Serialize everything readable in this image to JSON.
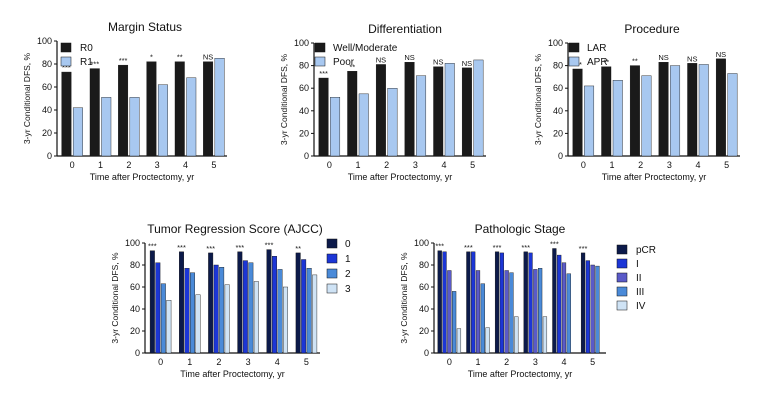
{
  "figure": {
    "colors": {
      "black": "#1a1a1a",
      "light_blue": "#a8c8f0",
      "navy": "#0c1a4a",
      "blue": "#1c36d6",
      "purple": "#5a5ac8",
      "mid_blue": "#4a8ad8",
      "pale_blue": "#cfe3f5"
    }
  },
  "chart_data": [
    {
      "type": "bar",
      "title": "Margin Status",
      "xlabel": "Time after Proctectomy, yr",
      "ylabel": "3-yr Conditional DFS, %",
      "ylim": [
        0,
        100
      ],
      "yticks": [
        "0",
        "20",
        "40",
        "60",
        "80",
        "100"
      ],
      "categories": [
        "0",
        "1",
        "2",
        "3",
        "4",
        "5"
      ],
      "legend_position": "top-right",
      "series": [
        {
          "name": "R0",
          "color": "#1a1a1a",
          "values": [
            73,
            76,
            79,
            82,
            82,
            82
          ]
        },
        {
          "name": "R1",
          "color": "#a8c8f0",
          "values": [
            42,
            51,
            51,
            62,
            68,
            85
          ]
        }
      ],
      "annotations": [
        "***",
        "***",
        "***",
        "*",
        "**",
        "NS"
      ]
    },
    {
      "type": "bar",
      "title": "Differentiation",
      "xlabel": "Time after Proctectomy, yr",
      "ylabel": "3-yr Conditional DFS, %",
      "ylim": [
        0,
        100
      ],
      "yticks": [
        "0",
        "20",
        "40",
        "60",
        "80",
        "100"
      ],
      "categories": [
        "0",
        "1",
        "2",
        "3",
        "4",
        "5"
      ],
      "legend_position": "top-right",
      "series": [
        {
          "name": "Well/Moderate",
          "color": "#1a1a1a",
          "values": [
            69,
            75,
            81,
            83,
            79,
            78
          ]
        },
        {
          "name": "Poor",
          "color": "#a8c8f0",
          "values": [
            52,
            55,
            60,
            71,
            82,
            85
          ]
        }
      ],
      "annotations": [
        "***",
        "**",
        "NS",
        "NS",
        "NS",
        "NS"
      ]
    },
    {
      "type": "bar",
      "title": "Procedure",
      "xlabel": "Time after Proctectomy, yr",
      "ylabel": "3-yr Conditional DFS, %",
      "ylim": [
        0,
        100
      ],
      "yticks": [
        "0",
        "20",
        "40",
        "60",
        "80",
        "100"
      ],
      "categories": [
        "0",
        "1",
        "2",
        "3",
        "4",
        "5"
      ],
      "legend_position": "top-right",
      "series": [
        {
          "name": "LAR",
          "color": "#1a1a1a",
          "values": [
            77,
            79,
            80,
            83,
            82,
            86
          ]
        },
        {
          "name": "APR",
          "color": "#a8c8f0",
          "values": [
            62,
            67,
            71,
            80,
            81,
            73
          ]
        }
      ],
      "annotations": [
        "***",
        "**",
        "**",
        "NS",
        "NS",
        "NS"
      ]
    },
    {
      "type": "bar",
      "title": "Tumor Regression Score  (AJCC)",
      "xlabel": "Time after Proctectomy, yr",
      "ylabel": "3-yr Conditional DFS, %",
      "ylim": [
        0,
        100
      ],
      "yticks": [
        "0",
        "20",
        "40",
        "60",
        "80",
        "100"
      ],
      "categories": [
        "0",
        "1",
        "2",
        "3",
        "4",
        "5"
      ],
      "legend_position": "right",
      "series": [
        {
          "name": "0",
          "color": "#0c1a4a",
          "values": [
            93,
            92,
            91,
            92,
            94,
            91
          ]
        },
        {
          "name": "1",
          "color": "#1c36d6",
          "values": [
            82,
            77,
            80,
            84,
            88,
            85
          ]
        },
        {
          "name": "2",
          "color": "#4a8ad8",
          "values": [
            63,
            73,
            78,
            82,
            76,
            77
          ]
        },
        {
          "name": "3",
          "color": "#cfe3f5",
          "values": [
            48,
            53,
            62,
            65,
            60,
            71
          ]
        }
      ],
      "annotations": [
        "***",
        "***",
        "***",
        "***",
        "***",
        "**"
      ]
    },
    {
      "type": "bar",
      "title": "Pathologic Stage",
      "xlabel": "Time after Proctectomy, yr",
      "ylabel": "3-yr Conditional DFS, %",
      "ylim": [
        0,
        100
      ],
      "yticks": [
        "0",
        "20",
        "40",
        "60",
        "80",
        "100"
      ],
      "categories": [
        "0",
        "1",
        "2",
        "3",
        "4",
        "5"
      ],
      "legend_position": "right",
      "series": [
        {
          "name": "pCR",
          "color": "#0c1a4a",
          "values": [
            93,
            92,
            92,
            92,
            95,
            91
          ]
        },
        {
          "name": "I",
          "color": "#1c36d6",
          "values": [
            92,
            92,
            91,
            91,
            89,
            84
          ]
        },
        {
          "name": "II",
          "color": "#5a5ac8",
          "values": [
            75,
            75,
            75,
            76,
            82,
            80
          ]
        },
        {
          "name": "III",
          "color": "#4a8ad8",
          "values": [
            56,
            63,
            73,
            77,
            72,
            79
          ]
        },
        {
          "name": "IV",
          "color": "#cfe3f5",
          "values": [
            22,
            23,
            33,
            33,
            null,
            null
          ]
        }
      ],
      "annotations": [
        "***",
        "***",
        "***",
        "***",
        "***",
        "***"
      ]
    }
  ]
}
